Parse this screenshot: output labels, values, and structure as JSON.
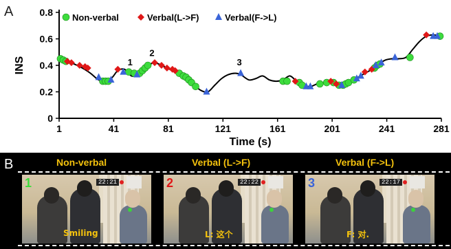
{
  "panelA": {
    "letter": "A",
    "ylabel": "INS",
    "xlabel": "Time (s)",
    "yticks": [
      "0",
      "0.2",
      "0.4",
      "0.6",
      "0.8"
    ],
    "xticks": [
      "1",
      "41",
      "81",
      "121",
      "161",
      "201",
      "241",
      "281"
    ],
    "legend": [
      {
        "label": "Non-verbal",
        "marker": "circle",
        "color": "#3ddc3d"
      },
      {
        "label": "Verbal(L->F)",
        "marker": "diamond",
        "color": "#e01818"
      },
      {
        "label": "Verbal(F->L)",
        "marker": "triangle",
        "color": "#3a64d8"
      }
    ],
    "annotations": [
      "1",
      "2",
      "3"
    ]
  },
  "panelB": {
    "letter": "B",
    "titles": [
      "Non-verbal",
      "Verbal (L->F)",
      "Verbal (F->L)"
    ],
    "frames": [
      {
        "num": "1",
        "num_color": "#3ddc3d",
        "stamp": "22:21",
        "caption": "Smiling"
      },
      {
        "num": "2",
        "num_color": "#e01818",
        "stamp": "22:22",
        "caption": "L: 这个"
      },
      {
        "num": "3",
        "num_color": "#3a64d8",
        "stamp": "22:17",
        "caption": "F: 对."
      }
    ]
  },
  "chart_data": {
    "type": "line",
    "title": "",
    "xlabel": "Time (s)",
    "ylabel": "INS",
    "xlim": [
      1,
      281
    ],
    "ylim": [
      0,
      0.8
    ],
    "grid": false,
    "legend_position": "top",
    "curve": {
      "x": [
        1,
        6,
        12,
        18,
        24,
        30,
        36,
        40,
        44,
        49,
        54,
        58,
        63,
        67,
        70,
        74,
        78,
        84,
        90,
        95,
        100,
        105,
        110,
        115,
        120,
        125,
        130,
        134,
        140,
        145,
        150,
        155,
        160,
        165,
        170,
        175,
        180,
        185,
        190,
        195,
        200,
        205,
        210,
        215,
        220,
        225,
        230,
        235,
        240,
        245,
        250,
        255,
        260,
        265,
        270,
        275,
        281
      ],
      "y": [
        0.45,
        0.43,
        0.41,
        0.38,
        0.34,
        0.29,
        0.28,
        0.31,
        0.36,
        0.37,
        0.32,
        0.33,
        0.36,
        0.4,
        0.42,
        0.41,
        0.39,
        0.36,
        0.33,
        0.3,
        0.25,
        0.21,
        0.2,
        0.25,
        0.3,
        0.33,
        0.34,
        0.33,
        0.29,
        0.3,
        0.32,
        0.29,
        0.28,
        0.29,
        0.32,
        0.28,
        0.25,
        0.24,
        0.26,
        0.27,
        0.27,
        0.25,
        0.26,
        0.28,
        0.31,
        0.34,
        0.37,
        0.41,
        0.44,
        0.45,
        0.45,
        0.46,
        0.52,
        0.58,
        0.62,
        0.63,
        0.62
      ]
    },
    "series": [
      {
        "name": "Non-verbal",
        "marker": "circle",
        "color": "#3ddc3d",
        "points": [
          [
            2,
            0.45
          ],
          [
            4,
            0.44
          ],
          [
            6,
            0.43
          ],
          [
            33,
            0.28
          ],
          [
            35,
            0.28
          ],
          [
            37,
            0.28
          ],
          [
            52,
            0.35
          ],
          [
            56,
            0.34
          ],
          [
            60,
            0.34
          ],
          [
            62,
            0.36
          ],
          [
            64,
            0.38
          ],
          [
            66,
            0.4
          ],
          [
            89,
            0.34
          ],
          [
            92,
            0.32
          ],
          [
            94,
            0.31
          ],
          [
            96,
            0.29
          ],
          [
            98,
            0.27
          ],
          [
            101,
            0.24
          ],
          [
            165,
            0.28
          ],
          [
            168,
            0.28
          ],
          [
            177,
            0.27
          ],
          [
            179,
            0.25
          ],
          [
            192,
            0.26
          ],
          [
            197,
            0.27
          ],
          [
            202,
            0.27
          ],
          [
            206,
            0.25
          ],
          [
            209,
            0.25
          ],
          [
            211,
            0.26
          ],
          [
            213,
            0.27
          ],
          [
            217,
            0.29
          ],
          [
            232,
            0.38
          ],
          [
            234,
            0.4
          ],
          [
            236,
            0.41
          ],
          [
            258,
            0.46
          ],
          [
            280,
            0.62
          ]
        ]
      },
      {
        "name": "Verbal(L->F)",
        "marker": "diamond",
        "color": "#e01818",
        "points": [
          [
            7,
            0.43
          ],
          [
            10,
            0.42
          ],
          [
            16,
            0.4
          ],
          [
            20,
            0.39
          ],
          [
            22,
            0.38
          ],
          [
            44,
            0.37
          ],
          [
            71,
            0.42
          ],
          [
            76,
            0.4
          ],
          [
            80,
            0.38
          ],
          [
            84,
            0.37
          ],
          [
            86,
            0.36
          ],
          [
            174,
            0.28
          ],
          [
            200,
            0.28
          ],
          [
            204,
            0.26
          ],
          [
            225,
            0.35
          ],
          [
            230,
            0.37
          ],
          [
            270,
            0.63
          ]
        ]
      },
      {
        "name": "Verbal(F->L)",
        "marker": "triangle",
        "color": "#3a64d8",
        "points": [
          [
            30,
            0.31
          ],
          [
            39,
            0.29
          ],
          [
            48,
            0.35
          ],
          [
            58,
            0.33
          ],
          [
            109,
            0.2
          ],
          [
            134,
            0.34
          ],
          [
            182,
            0.24
          ],
          [
            185,
            0.24
          ],
          [
            208,
            0.25
          ],
          [
            219,
            0.3
          ],
          [
            222,
            0.32
          ],
          [
            233,
            0.4
          ],
          [
            237,
            0.42
          ],
          [
            247,
            0.46
          ],
          [
            275,
            0.62
          ],
          [
            278,
            0.62
          ]
        ]
      }
    ],
    "labels": [
      {
        "text": "1",
        "x": 53,
        "y": 0.37
      },
      {
        "text": "2",
        "x": 69,
        "y": 0.44
      },
      {
        "text": "3",
        "x": 133,
        "y": 0.37
      }
    ]
  }
}
